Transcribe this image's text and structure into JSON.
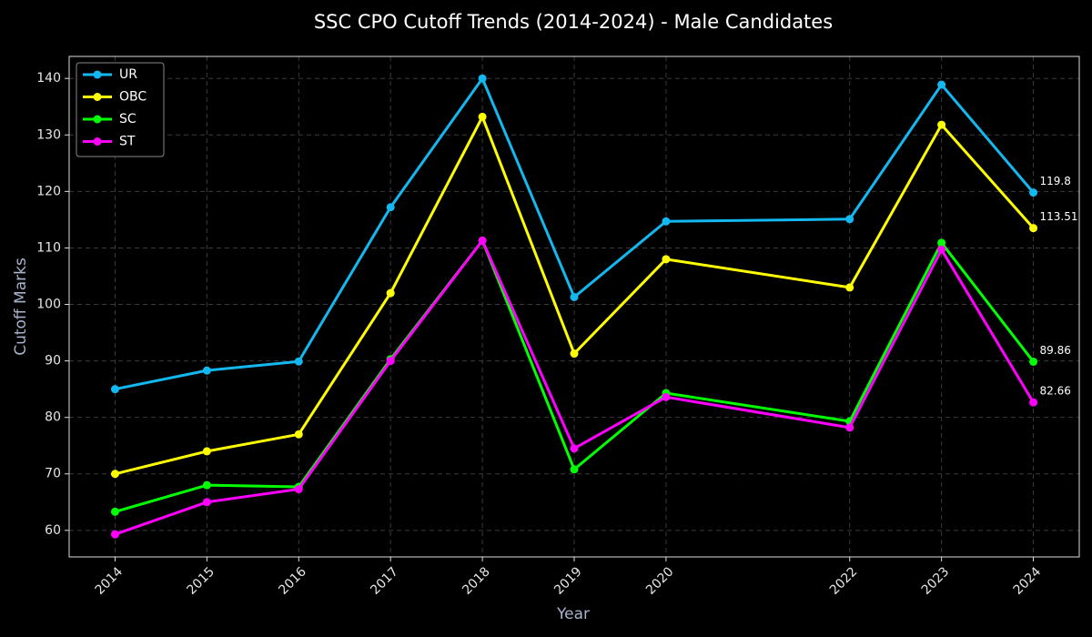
{
  "chart_data": {
    "type": "line",
    "title": "SSC CPO Cutoff Trends (2014-2024) - Male Candidates",
    "x_label": "Year",
    "y_label": "Cutoff Marks",
    "x": [
      2014,
      2015,
      2016,
      2017,
      2018,
      2019,
      2020,
      2022,
      2023,
      2024
    ],
    "series": [
      {
        "name": "UR",
        "color": "#14b8f0",
        "values": [
          85.0,
          88.3,
          89.9,
          117.2,
          140.0,
          101.3,
          114.7,
          115.1,
          138.9,
          119.8
        ]
      },
      {
        "name": "OBC",
        "color": "#ffff00",
        "values": [
          70.0,
          74.0,
          77.0,
          102.0,
          133.2,
          91.3,
          108.0,
          103.0,
          131.8,
          113.51
        ]
      },
      {
        "name": "SC",
        "color": "#00ff00",
        "values": [
          63.3,
          68.0,
          67.7,
          90.3,
          111.3,
          70.8,
          84.3,
          79.3,
          110.9,
          89.86
        ]
      },
      {
        "name": "ST",
        "color": "#ff00ff",
        "values": [
          59.3,
          65.0,
          67.3,
          90.0,
          111.3,
          74.5,
          83.6,
          78.2,
          109.7,
          82.66
        ]
      }
    ],
    "xlim": [
      2013.5,
      2024.5
    ],
    "xticks": [
      2014,
      2015,
      2016,
      2017,
      2018,
      2019,
      2020,
      2022,
      2023,
      2024
    ],
    "ylim": [
      55.3,
      143.9
    ],
    "yticks": [
      60,
      70,
      80,
      90,
      100,
      110,
      120,
      130,
      140
    ],
    "grid": true,
    "legend": "upper-left",
    "label_last": true
  }
}
